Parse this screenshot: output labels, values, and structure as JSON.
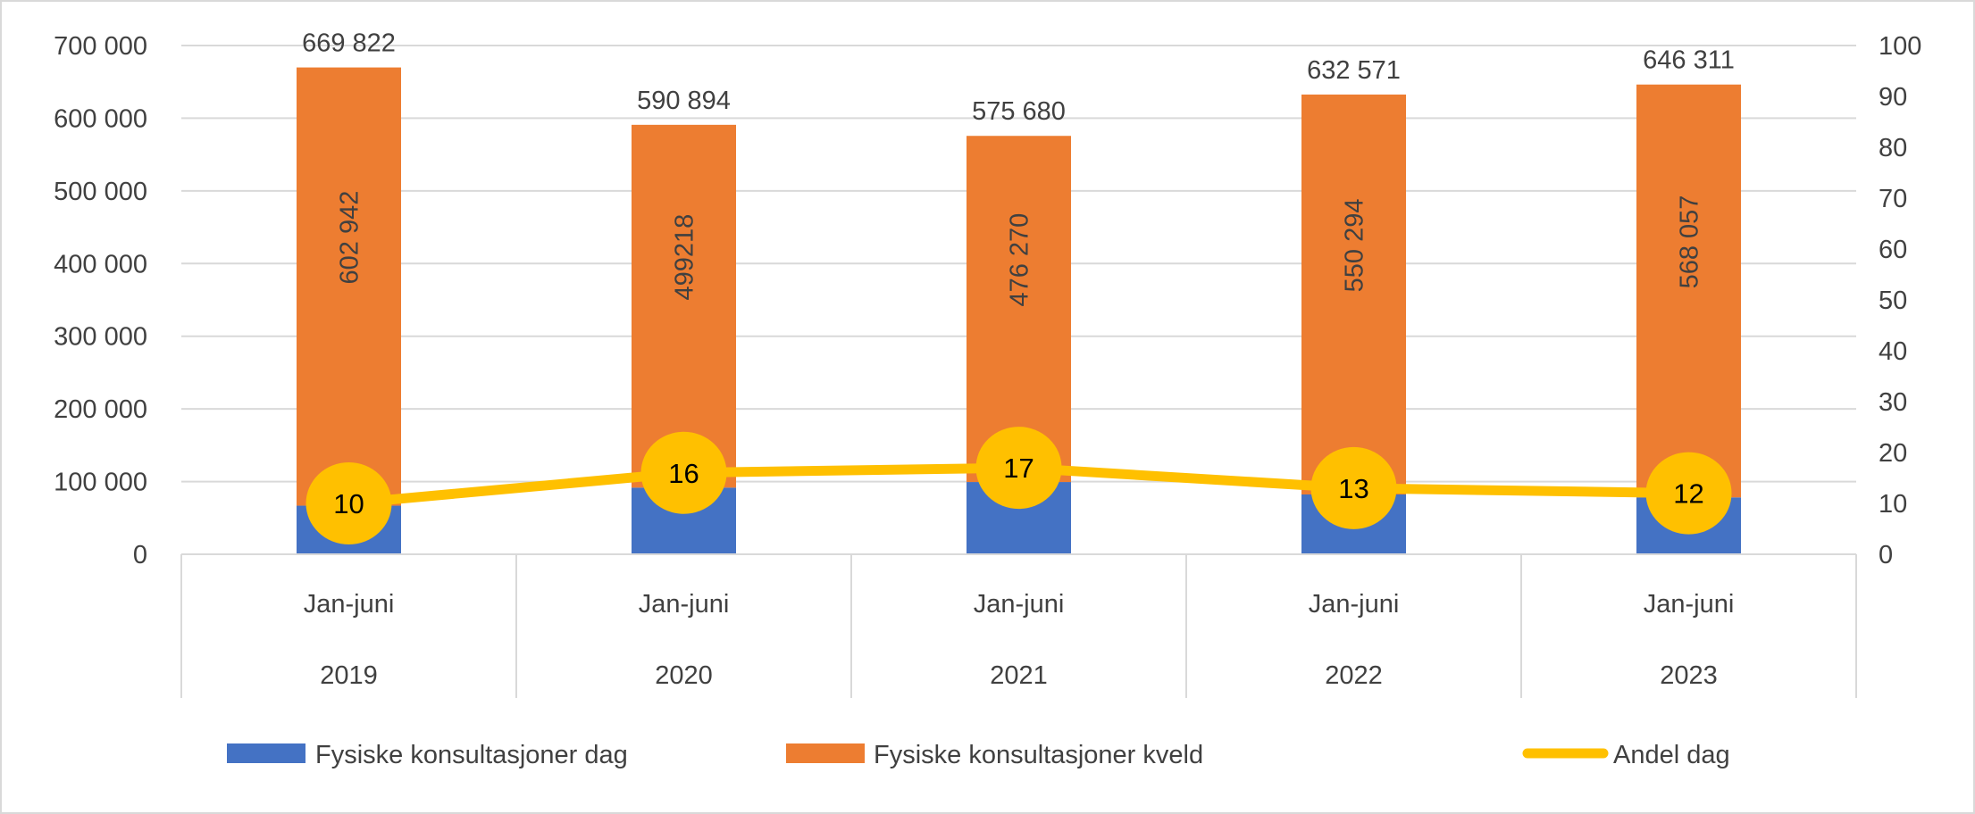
{
  "chart_data": {
    "type": "bar",
    "stacked": true,
    "categories": [
      [
        "Jan-juni",
        "2019"
      ],
      [
        "Jan-juni",
        "2020"
      ],
      [
        "Jan-juni",
        "2021"
      ],
      [
        "Jan-juni",
        "2022"
      ],
      [
        "Jan-juni",
        "2023"
      ]
    ],
    "series": [
      {
        "name": "Fysiske konsultasjoner dag",
        "type": "bar",
        "axis": "left",
        "color": "#4472C4",
        "values": [
          66880,
          91676,
          99410,
          82277,
          78254
        ]
      },
      {
        "name": "Fysiske konsultasjoner kveld",
        "type": "bar",
        "axis": "left",
        "color": "#ED7D31",
        "values": [
          602942,
          499218,
          476270,
          550294,
          568057
        ],
        "data_labels": [
          "602 942",
          "499218",
          "476 270",
          "550 294",
          "568 057"
        ]
      },
      {
        "name": "Andel dag",
        "type": "line",
        "axis": "right",
        "color": "#FFC000",
        "values": [
          10,
          16,
          17,
          13,
          12
        ],
        "data_labels": [
          "10",
          "16",
          "17",
          "13",
          "12"
        ]
      }
    ],
    "total_labels": [
      "669 822",
      "590 894",
      "575 680",
      "632 571",
      "646 311"
    ],
    "totals": [
      669822,
      590894,
      575680,
      632571,
      646311
    ],
    "y_left": {
      "min": 0,
      "max": 700000,
      "ticks": [
        "0",
        "100 000",
        "200 000",
        "300 000",
        "400 000",
        "500 000",
        "600 000",
        "700 000"
      ]
    },
    "y_right": {
      "min": 0,
      "max": 100,
      "ticks": [
        "0",
        "10",
        "20",
        "30",
        "40",
        "50",
        "60",
        "70",
        "80",
        "90",
        "100"
      ]
    },
    "grid": true,
    "legend_position": "bottom",
    "title": "",
    "xlabel": "",
    "ylabel": ""
  }
}
